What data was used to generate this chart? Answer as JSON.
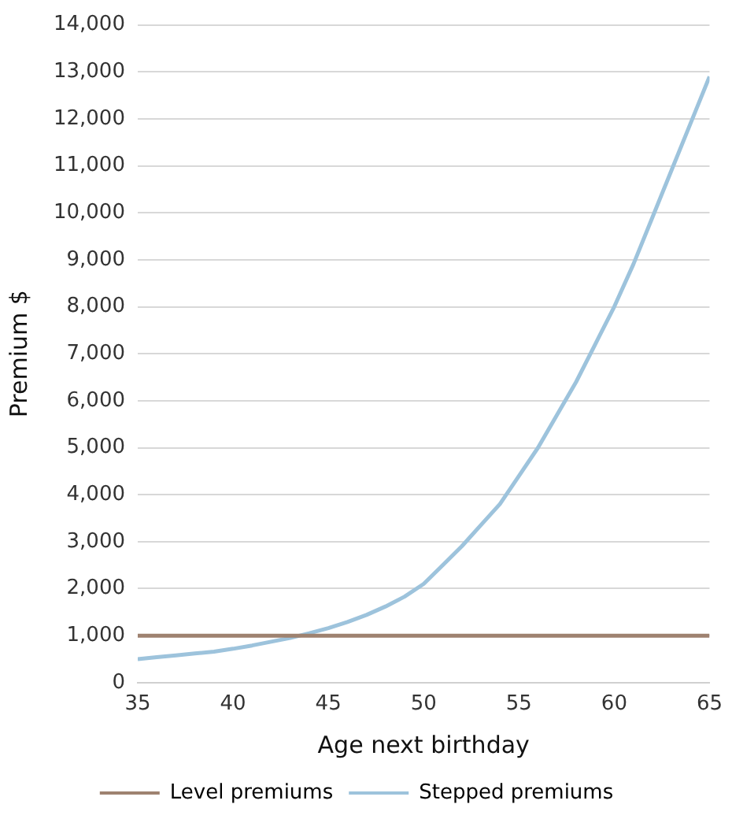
{
  "chart_data": {
    "type": "line",
    "xlabel": "Age next birthday",
    "ylabel": "Premium $",
    "x": [
      35,
      36,
      37,
      38,
      39,
      40,
      41,
      42,
      43,
      44,
      45,
      46,
      47,
      48,
      49,
      50,
      51,
      52,
      53,
      54,
      55,
      56,
      57,
      58,
      59,
      60,
      61,
      62,
      63,
      64,
      65
    ],
    "series": [
      {
        "name": "Level premiums",
        "color": "#9e8270",
        "values": [
          1000,
          1000,
          1000,
          1000,
          1000,
          1000,
          1000,
          1000,
          1000,
          1000,
          1000,
          1000,
          1000,
          1000,
          1000,
          1000,
          1000,
          1000,
          1000,
          1000,
          1000,
          1000,
          1000,
          1000,
          1000,
          1000,
          1000,
          1000,
          1000,
          1000,
          1000
        ]
      },
      {
        "name": "Stepped premiums",
        "color": "#9dc3dc",
        "values": [
          500,
          540,
          580,
          620,
          660,
          720,
          790,
          870,
          950,
          1050,
          1160,
          1290,
          1440,
          1620,
          1830,
          2100,
          2500,
          2900,
          3350,
          3800,
          4400,
          5000,
          5700,
          6400,
          7200,
          8000,
          8900,
          9900,
          10900,
          11900,
          12900
        ]
      }
    ],
    "xlim": [
      35,
      65
    ],
    "xticks": [
      35,
      40,
      45,
      50,
      55,
      60,
      65
    ],
    "ylim": [
      0,
      14000
    ],
    "yticks": [
      0,
      {
        "value": 1000,
        "label": "1,000"
      },
      {
        "value": 2000,
        "label": "2,000"
      },
      {
        "value": 3000,
        "label": "3,000"
      },
      {
        "value": 4000,
        "label": "4,000"
      },
      {
        "value": 5000,
        "label": "5,000"
      },
      {
        "value": 6000,
        "label": "6,000"
      },
      {
        "value": 7000,
        "label": "7,000"
      },
      {
        "value": 8000,
        "label": "8,000"
      },
      {
        "value": 9000,
        "label": "9,000"
      },
      {
        "value": 10000,
        "label": "10,000"
      },
      {
        "value": 11000,
        "label": "11,000"
      },
      {
        "value": 12000,
        "label": "12,000"
      },
      {
        "value": 13000,
        "label": "13,000"
      },
      {
        "value": 14000,
        "label": "14,000"
      }
    ],
    "grid": "y",
    "legend": "bottom",
    "marker": "none",
    "line_style": "solid"
  }
}
